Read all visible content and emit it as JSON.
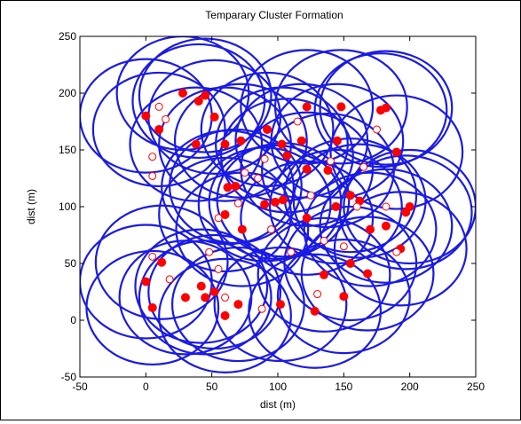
{
  "chart_data": {
    "type": "scatter",
    "title": "Temparary Cluster Formation",
    "xlabel": "dist (m)",
    "ylabel": "dist (m)",
    "xlim": [
      -50,
      250
    ],
    "ylim": [
      -50,
      250
    ],
    "xticks": [
      -50,
      0,
      50,
      100,
      150,
      200,
      250
    ],
    "yticks": [
      -50,
      0,
      50,
      100,
      150,
      200,
      250
    ],
    "grid": false,
    "colors": {
      "circles": "#1a1ae6",
      "nodes": "#ff0000",
      "axes": "#000000"
    },
    "circle_radius": 50,
    "series": [
      {
        "marker": "filled-circle",
        "points": [
          [
            0,
            180
          ],
          [
            10,
            168
          ],
          [
            40,
            193
          ],
          [
            45,
            198
          ],
          [
            52,
            179
          ],
          [
            38,
            155
          ],
          [
            60,
            155
          ],
          [
            72,
            158
          ],
          [
            92,
            168
          ],
          [
            103,
            155
          ],
          [
            118,
            158
          ],
          [
            122,
            188
          ],
          [
            145,
            158
          ],
          [
            148,
            188
          ],
          [
            178,
            185
          ],
          [
            182,
            187
          ],
          [
            190,
            148
          ],
          [
            107,
            145
          ],
          [
            122,
            133
          ],
          [
            138,
            132
          ],
          [
            62,
            117
          ],
          [
            68,
            118
          ],
          [
            155,
            110
          ],
          [
            162,
            105
          ],
          [
            90,
            102
          ],
          [
            98,
            104
          ],
          [
            122,
            90
          ],
          [
            144,
            100
          ],
          [
            197,
            95
          ],
          [
            200,
            100
          ],
          [
            60,
            93
          ],
          [
            73,
            80
          ],
          [
            170,
            80
          ],
          [
            182,
            83
          ],
          [
            193,
            63
          ],
          [
            12,
            51
          ],
          [
            0,
            34
          ],
          [
            42,
            30
          ],
          [
            30,
            20
          ],
          [
            52,
            25
          ],
          [
            45,
            20
          ],
          [
            70,
            14
          ],
          [
            60,
            4
          ],
          [
            102,
            14
          ],
          [
            128,
            8
          ],
          [
            150,
            21
          ],
          [
            155,
            50
          ],
          [
            135,
            40
          ],
          [
            168,
            41
          ],
          [
            5,
            11
          ],
          [
            28,
            200
          ],
          [
            104,
            106
          ]
        ]
      },
      {
        "marker": "open-circle",
        "points": [
          [
            10,
            188
          ],
          [
            15,
            177
          ],
          [
            5,
            144
          ],
          [
            5,
            127
          ],
          [
            55,
            90
          ],
          [
            48,
            60
          ],
          [
            85,
            125
          ],
          [
            90,
            142
          ],
          [
            75,
            130
          ],
          [
            175,
            168
          ],
          [
            165,
            135
          ],
          [
            125,
            110
          ],
          [
            135,
            70
          ],
          [
            150,
            65
          ],
          [
            60,
            20
          ],
          [
            88,
            10
          ],
          [
            130,
            23
          ],
          [
            182,
            100
          ],
          [
            190,
            60
          ],
          [
            5,
            56
          ],
          [
            18,
            36
          ],
          [
            55,
            45
          ],
          [
            110,
            60
          ],
          [
            95,
            80
          ],
          [
            140,
            140
          ],
          [
            160,
            100
          ],
          [
            115,
            175
          ],
          [
            70,
            103
          ]
        ]
      }
    ]
  }
}
